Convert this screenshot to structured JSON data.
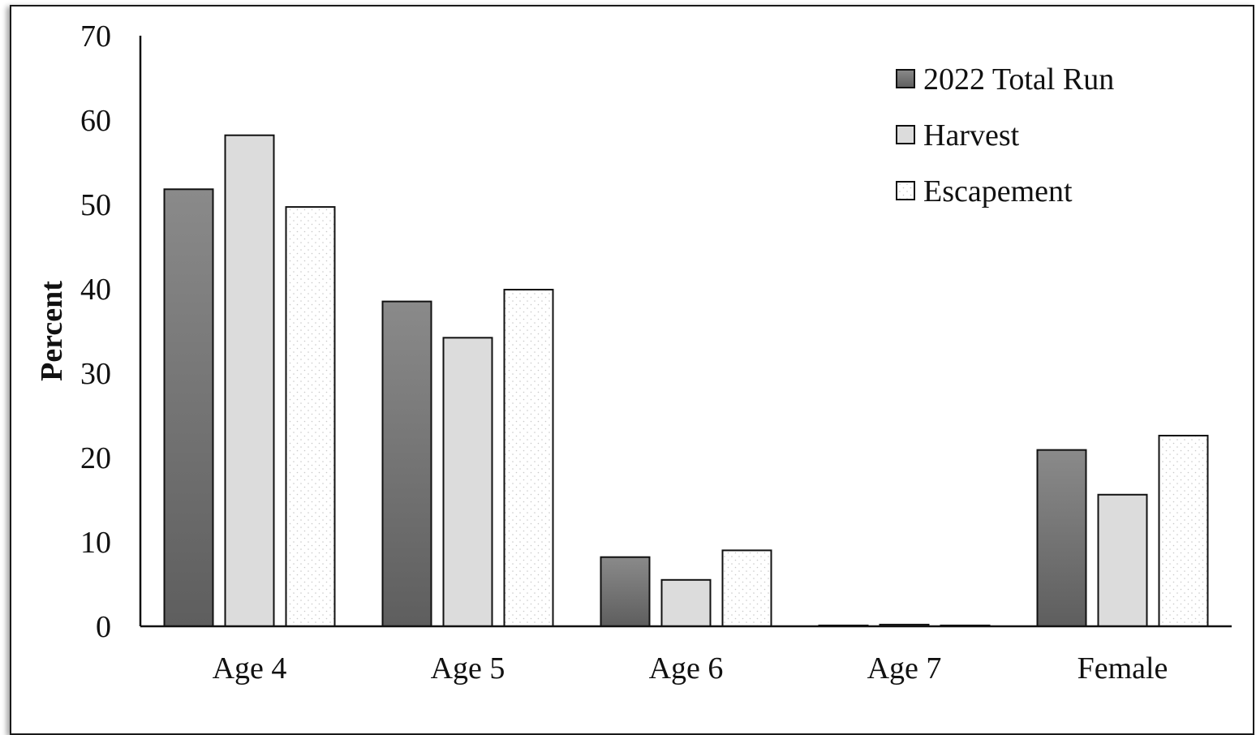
{
  "chart_data": {
    "type": "bar",
    "title": "",
    "xlabel": "",
    "ylabel": "Percent",
    "ylim": [
      0,
      70
    ],
    "yticks": [
      0,
      10,
      20,
      30,
      40,
      50,
      60,
      70
    ],
    "categories": [
      "Age 4",
      "Age 5",
      "Age 6",
      "Age 7",
      "Female"
    ],
    "series": [
      {
        "name": "2022 Total Run",
        "values": [
          51.8,
          38.5,
          8.2,
          0.1,
          20.9
        ],
        "style": "dark-gradient",
        "color": "#6e6e6e"
      },
      {
        "name": "Harvest",
        "values": [
          58.2,
          34.2,
          5.5,
          0.2,
          15.6
        ],
        "style": "light-gray",
        "color": "#dcdcdc"
      },
      {
        "name": "Escapement",
        "values": [
          49.7,
          39.9,
          9.0,
          0.1,
          22.6
        ],
        "style": "white-dotted",
        "color": "#ffffff"
      }
    ],
    "grid": false,
    "legend_position": "top-right"
  }
}
